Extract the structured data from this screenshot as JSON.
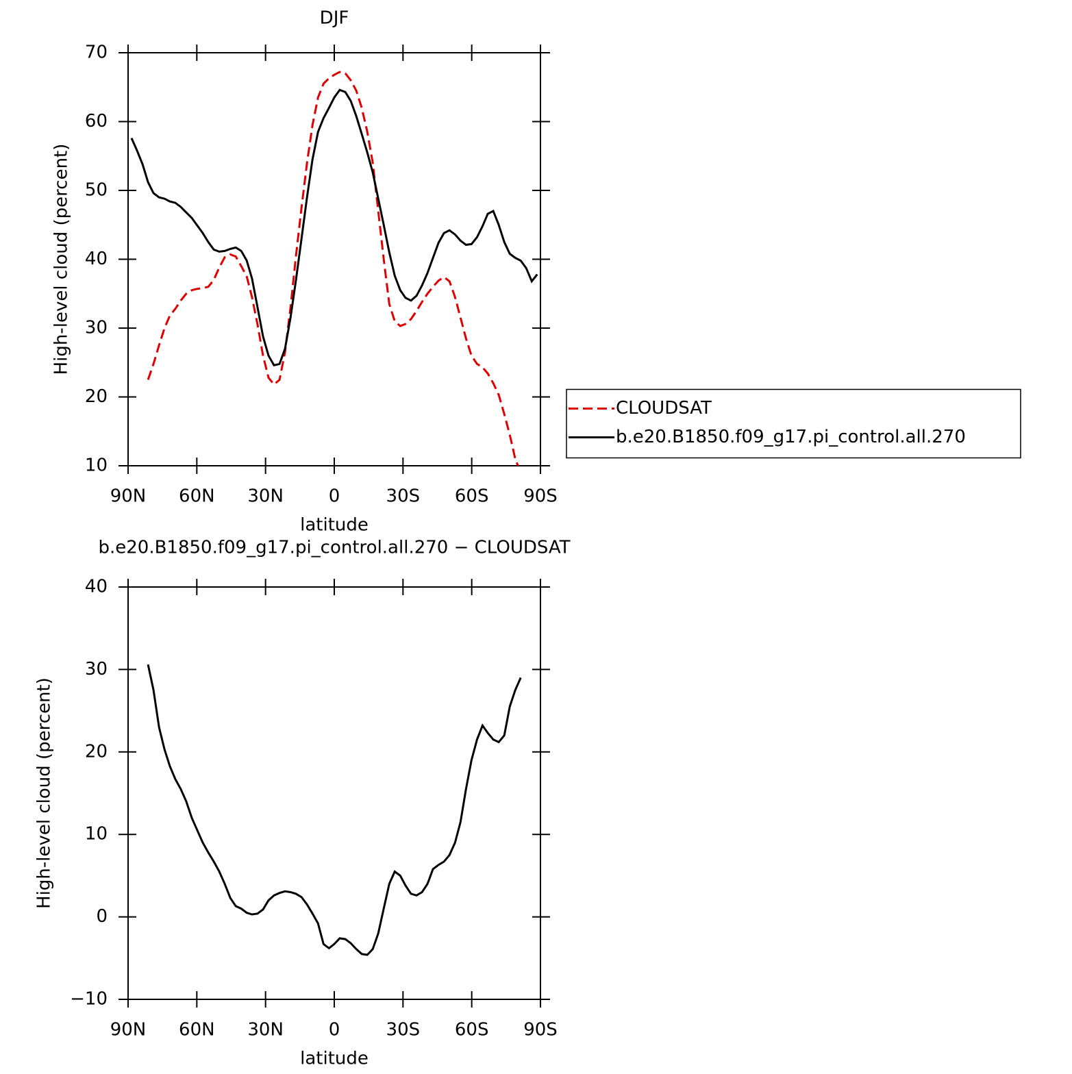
{
  "chart_data": [
    {
      "type": "line",
      "title": "DJF",
      "xlabel": "latitude",
      "ylabel": "High-level cloud (percent)",
      "x": [
        88.5,
        86.1,
        83.7,
        81.3,
        78.9,
        76.5,
        74.1,
        71.8,
        69.4,
        67.0,
        64.6,
        62.2,
        59.8,
        57.4,
        55.0,
        52.6,
        50.2,
        47.8,
        45.4,
        43.0,
        40.6,
        38.2,
        35.9,
        33.5,
        31.1,
        28.7,
        26.3,
        23.9,
        21.5,
        19.1,
        16.7,
        14.3,
        11.9,
        9.5,
        7.1,
        4.7,
        2.3,
        0.0,
        -2.4,
        -4.8,
        -7.2,
        -9.6,
        -12.0,
        -14.4,
        -16.8,
        -19.2,
        -21.6,
        -24.0,
        -26.4,
        -28.8,
        -31.1,
        -33.5,
        -35.9,
        -38.3,
        -40.7,
        -43.1,
        -45.5,
        -47.9,
        -50.3,
        -52.7,
        -55.1,
        -57.5,
        -59.9,
        -62.3,
        -64.7,
        -67.0,
        -69.4,
        -71.8,
        -74.2,
        -76.6,
        -79.0,
        -81.4,
        -83.8,
        -86.2,
        -88.6
      ],
      "series": [
        {
          "name": "CLOUDSAT",
          "color": "#e00000",
          "dash": true,
          "values": [
            null,
            null,
            null,
            22.5,
            24.8,
            27.5,
            30.0,
            31.8,
            32.8,
            34.0,
            35.0,
            35.5,
            35.7,
            35.8,
            36.0,
            37.0,
            38.8,
            40.3,
            40.7,
            40.4,
            39.0,
            37.5,
            34.5,
            30.5,
            26.0,
            22.8,
            21.8,
            22.5,
            26.5,
            33.0,
            40.5,
            47.5,
            54.0,
            59.5,
            63.5,
            65.5,
            66.3,
            66.8,
            67.2,
            67.0,
            66.0,
            64.5,
            62.0,
            58.5,
            54.0,
            47.0,
            40.0,
            33.5,
            31.0,
            30.3,
            30.6,
            31.3,
            32.5,
            33.8,
            35.0,
            36.0,
            36.9,
            37.4,
            36.8,
            34.5,
            31.5,
            28.5,
            26.0,
            24.8,
            24.3,
            23.4,
            22.0,
            20.3,
            17.5,
            14.5,
            11.0,
            9.0,
            null,
            null,
            null
          ]
        },
        {
          "name": "b.e20.B1850.f09_g17.pi_control.all.270",
          "color": "#000000",
          "dash": false,
          "values": [
            57.6,
            55.8,
            53.8,
            51.2,
            49.6,
            49.0,
            48.8,
            48.4,
            48.2,
            47.6,
            46.8,
            46.0,
            44.9,
            43.8,
            42.5,
            41.4,
            41.1,
            41.2,
            41.5,
            41.7,
            41.2,
            39.8,
            37.2,
            33.0,
            28.8,
            26.0,
            24.6,
            24.8,
            27.0,
            31.5,
            37.0,
            43.0,
            49.0,
            54.5,
            58.5,
            60.5,
            62.0,
            63.5,
            64.6,
            64.3,
            63.0,
            60.8,
            58.2,
            55.5,
            52.6,
            48.8,
            45.0,
            41.0,
            37.6,
            35.5,
            34.4,
            34.0,
            34.7,
            36.2,
            38.0,
            40.2,
            42.4,
            43.8,
            44.2,
            43.6,
            42.7,
            42.1,
            42.2,
            43.2,
            44.8,
            46.6,
            47.0,
            45.0,
            42.5,
            40.8,
            40.2,
            39.8,
            38.7,
            36.8,
            37.8
          ]
        }
      ],
      "xlim": [
        90,
        -90
      ],
      "xticks": [
        {
          "value": 90,
          "label": "90N"
        },
        {
          "value": 60,
          "label": "60N"
        },
        {
          "value": 30,
          "label": "30N"
        },
        0,
        {
          "value": -30,
          "label": "30S"
        },
        {
          "value": -60,
          "label": "60S"
        },
        {
          "value": -90,
          "label": "90S"
        }
      ],
      "ylim": [
        10,
        70
      ],
      "yticks": [
        10,
        20,
        30,
        40,
        50,
        60,
        70
      ],
      "legend": "right"
    },
    {
      "type": "line",
      "title": "b.e20.B1850.f09_g17.pi_control.all.270 − CLOUDSAT",
      "xlabel": "latitude",
      "ylabel": "High-level cloud (percent)",
      "x": [
        88.5,
        86.1,
        83.7,
        81.3,
        78.9,
        76.5,
        74.1,
        71.8,
        69.4,
        67.0,
        64.6,
        62.2,
        59.8,
        57.4,
        55.0,
        52.6,
        50.2,
        47.8,
        45.4,
        43.0,
        40.6,
        38.2,
        35.9,
        33.5,
        31.1,
        28.7,
        26.3,
        23.9,
        21.5,
        19.1,
        16.7,
        14.3,
        11.9,
        9.5,
        7.1,
        4.7,
        2.3,
        0.0,
        -2.4,
        -4.8,
        -7.2,
        -9.6,
        -12.0,
        -14.4,
        -16.8,
        -19.2,
        -21.6,
        -24.0,
        -26.4,
        -28.8,
        -31.1,
        -33.5,
        -35.9,
        -38.3,
        -40.7,
        -43.1,
        -45.5,
        -47.9,
        -50.3,
        -52.7,
        -55.1,
        -57.5,
        -59.9,
        -62.3,
        -64.7,
        -67.0,
        -69.4,
        -71.8,
        -74.2,
        -76.6,
        -79.0,
        -81.4,
        -83.8,
        -86.2,
        -88.6
      ],
      "series": [
        {
          "color": "#000000",
          "dash": false,
          "values": [
            null,
            null,
            null,
            30.6,
            27.5,
            23.0,
            20.3,
            18.3,
            16.7,
            15.5,
            14.0,
            12.0,
            10.5,
            9.0,
            7.8,
            6.7,
            5.5,
            4.0,
            2.3,
            1.3,
            1.0,
            0.5,
            0.3,
            0.4,
            0.9,
            2.0,
            2.6,
            2.9,
            3.1,
            3.0,
            2.8,
            2.4,
            1.5,
            0.4,
            -0.8,
            -3.3,
            -3.8,
            -3.3,
            -2.6,
            -2.7,
            -3.2,
            -3.9,
            -4.5,
            -4.6,
            -3.9,
            -2.0,
            1.0,
            4.0,
            5.5,
            5.0,
            3.8,
            2.8,
            2.6,
            3.0,
            4.0,
            5.8,
            6.3,
            6.7,
            7.5,
            9.0,
            11.5,
            15.5,
            19.0,
            21.5,
            23.2,
            22.3,
            21.5,
            21.2,
            22.0,
            25.5,
            27.5,
            29.0,
            null,
            null,
            null
          ]
        }
      ],
      "xlim": [
        90,
        -90
      ],
      "xticks": [
        {
          "value": 90,
          "label": "90N"
        },
        {
          "value": 60,
          "label": "60N"
        },
        {
          "value": 30,
          "label": "30N"
        },
        0,
        {
          "value": -30,
          "label": "30S"
        },
        {
          "value": -60,
          "label": "60S"
        },
        {
          "value": -90,
          "label": "90S"
        }
      ],
      "ylim": [
        -10,
        40
      ],
      "yticks": [
        {
          "value": -10,
          "label": "−10"
        },
        0,
        10,
        20,
        30,
        40
      ]
    }
  ]
}
